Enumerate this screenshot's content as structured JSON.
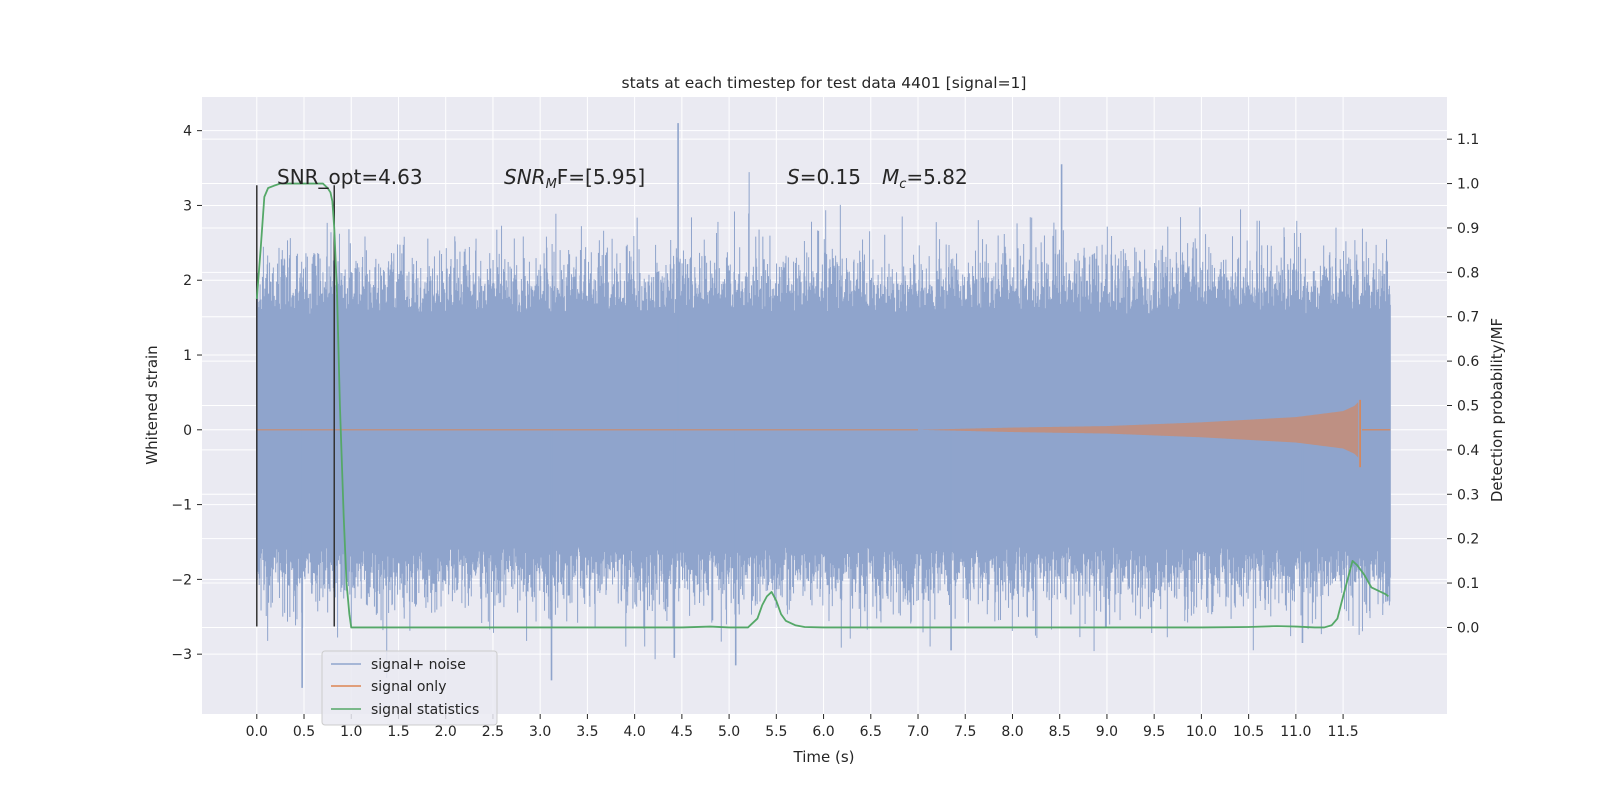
{
  "chart_data": {
    "type": "line",
    "title": "stats at each timestep for test data 4401 [signal=1]",
    "xlabel": "Time (s)",
    "ylabel": "Whitened strain",
    "y2label": "Detection probability/MF",
    "xlim": [
      -0.58,
      12.6
    ],
    "ylim": [
      -3.8,
      4.45
    ],
    "y2lim": [
      -0.195,
      1.195
    ],
    "xticks": [
      "0.0",
      "0.5",
      "1.0",
      "1.5",
      "2.0",
      "2.5",
      "3.0",
      "3.5",
      "4.0",
      "4.5",
      "5.0",
      "5.5",
      "6.0",
      "6.5",
      "7.0",
      "7.5",
      "8.0",
      "8.5",
      "9.0",
      "9.5",
      "10.0",
      "10.5",
      "11.0",
      "11.5"
    ],
    "yticks": [
      "−3",
      "−2",
      "−1",
      "0",
      "1",
      "2",
      "3",
      "4"
    ],
    "y2ticks": [
      "0.0",
      "0.1",
      "0.2",
      "0.3",
      "0.4",
      "0.5",
      "0.6",
      "0.7",
      "0.8",
      "0.9",
      "1.0",
      "1.1"
    ],
    "grid": true,
    "legend_position": "lower-left",
    "annotations": {
      "snr_opt": "SNR_opt=4.63",
      "snr_mf_label": "SNR",
      "snr_mf_sub": "M",
      "snr_mf_rest": "F=[5.95]",
      "s_label": "S",
      "s_value": "=0.15",
      "mc_label": "M",
      "mc_sub": "c",
      "mc_value": "=5.82"
    },
    "colors": {
      "background": "#eaeaf2",
      "grid": "#ffffff",
      "signal_noise": "#8fa4cc",
      "signal_only": "#dd8452",
      "statistics": "#55a868",
      "marker_lines": "#333333"
    },
    "series": [
      {
        "name": "signal+ noise",
        "kind": "noise-band",
        "x_range": [
          0.0,
          12.0
        ],
        "envelope_upper": 1.5,
        "envelope_lower": -1.5,
        "notable_peaks": [
          {
            "x": 4.46,
            "y": 4.1
          },
          {
            "x": 8.52,
            "y": 3.55
          },
          {
            "x": 0.48,
            "y": -3.45
          },
          {
            "x": 3.12,
            "y": -3.35
          },
          {
            "x": 5.07,
            "y": -3.15
          },
          {
            "x": 4.42,
            "y": -3.05
          },
          {
            "x": 7.35,
            "y": -2.95
          },
          {
            "x": 11.07,
            "y": -2.85
          }
        ]
      },
      {
        "name": "signal only",
        "kind": "chirp",
        "x_range": [
          0.0,
          11.7
        ],
        "chirp_envelope": [
          [
            7.0,
            0.0
          ],
          [
            8.0,
            0.03
          ],
          [
            9.0,
            0.05
          ],
          [
            10.0,
            0.1
          ],
          [
            11.0,
            0.17
          ],
          [
            11.5,
            0.25
          ],
          [
            11.62,
            0.32
          ],
          [
            11.66,
            0.37
          ]
        ],
        "merger": {
          "x": 11.68,
          "max": 0.4,
          "min": -0.5
        },
        "after_merger": [
          [
            11.7,
            0.0
          ],
          [
            12.0,
            0.0
          ]
        ]
      },
      {
        "name": "signal statistics",
        "kind": "line",
        "axis": "y2",
        "x": [
          0.0,
          0.04,
          0.08,
          0.12,
          0.18,
          0.25,
          0.3,
          0.4,
          0.5,
          0.6,
          0.7,
          0.75,
          0.78,
          0.8,
          0.82,
          0.85,
          0.88,
          0.92,
          0.95,
          0.98,
          1.0,
          1.05,
          1.1,
          1.5,
          2.0,
          3.0,
          4.0,
          4.5,
          4.8,
          5.0,
          5.2,
          5.3,
          5.35,
          5.4,
          5.45,
          5.5,
          5.55,
          5.6,
          5.7,
          5.8,
          6.0,
          7.0,
          8.0,
          9.0,
          10.0,
          10.5,
          10.8,
          11.0,
          11.2,
          11.3,
          11.38,
          11.44,
          11.5,
          11.55,
          11.6,
          11.65,
          11.72,
          11.8,
          11.9,
          11.95,
          11.98
        ],
        "y": [
          0.74,
          0.85,
          0.97,
          0.99,
          0.995,
          1.0,
          1.0,
          1.0,
          1.0,
          1.0,
          1.0,
          0.99,
          0.98,
          0.96,
          0.9,
          0.75,
          0.5,
          0.25,
          0.1,
          0.03,
          0.0,
          0.0,
          0.0,
          0.0,
          0.0,
          0.0,
          0.0,
          0.0,
          0.002,
          0.0,
          0.0,
          0.02,
          0.05,
          0.07,
          0.08,
          0.06,
          0.03,
          0.015,
          0.005,
          0.001,
          0.0,
          0.0,
          0.0,
          0.0,
          0.0,
          0.001,
          0.003,
          0.002,
          0.0,
          0.0,
          0.005,
          0.02,
          0.07,
          0.11,
          0.15,
          0.14,
          0.12,
          0.09,
          0.08,
          0.075,
          0.07
        ]
      }
    ],
    "markers": [
      {
        "x": 0.0,
        "y_top": 3.27,
        "y_bottom": -2.63
      },
      {
        "x": 0.82,
        "y_top": 3.27,
        "y_bottom": -2.63
      }
    ]
  }
}
